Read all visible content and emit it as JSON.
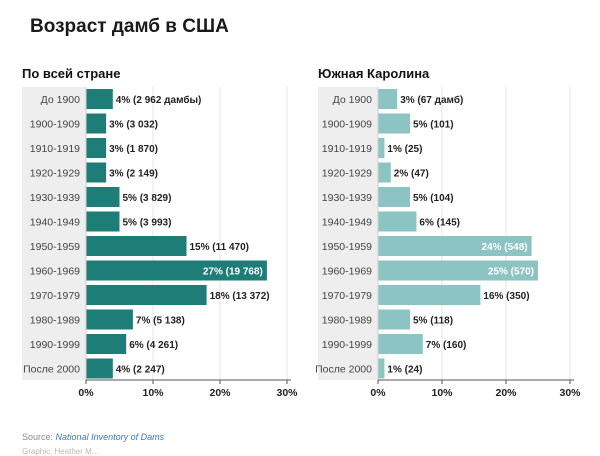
{
  "title": "Возраст дамб в США",
  "source": {
    "label": "Source:",
    "link": "National Inventory of Dams"
  },
  "footer_note": "Graphic: Heather M...",
  "colors": {
    "national": "#1e7d77",
    "sc": "#8cc3c3",
    "grid": "#e6e6e6",
    "label_band": "#eeeeee"
  },
  "chart_data": [
    {
      "type": "bar",
      "orientation": "horizontal",
      "title": "По всей стране",
      "categories": [
        "До 1900",
        "1900-1909",
        "1910-1919",
        "1920-1929",
        "1930-1939",
        "1940-1949",
        "1950-1959",
        "1960-1969",
        "1970-1979",
        "1980-1989",
        "1990-1999",
        "После 2000"
      ],
      "values": [
        4,
        3,
        3,
        3,
        5,
        5,
        15,
        27,
        18,
        7,
        6,
        4
      ],
      "data_labels": [
        "4% (2 962 дамбы)",
        "3% (3 032)",
        "3% (1 870)",
        "3% (2 149)",
        "5% (3 829)",
        "5% (3 993)",
        "15% (11 470)",
        "27% (19 768)",
        "18% (13 372)",
        "7% (5 138)",
        "6% (4 261)",
        "4% (2 247)"
      ],
      "label_inside": [
        false,
        false,
        false,
        false,
        false,
        false,
        false,
        true,
        false,
        false,
        false,
        false
      ],
      "xticks": [
        "0%",
        "10%",
        "20%",
        "30%"
      ],
      "xtick_values": [
        0,
        10,
        20,
        30
      ],
      "xlim": [
        0,
        30
      ],
      "grid": true
    },
    {
      "type": "bar",
      "orientation": "horizontal",
      "title": "Южная Каролина",
      "categories": [
        "До 1900",
        "1900-1909",
        "1910-1919",
        "1920-1929",
        "1930-1939",
        "1940-1949",
        "1950-1959",
        "1960-1969",
        "1970-1979",
        "1980-1989",
        "1990-1999",
        "После 2000"
      ],
      "values": [
        3,
        5,
        1,
        2,
        5,
        6,
        24,
        25,
        16,
        5,
        7,
        1
      ],
      "data_labels": [
        "3% (67 дамб)",
        "5% (101)",
        "1% (25)",
        "2% (47)",
        "5% (104)",
        "6% (145)",
        "24% (548)",
        "25% (570)",
        "16% (350)",
        "5% (118)",
        "7% (160)",
        "1% (24)"
      ],
      "label_inside": [
        false,
        false,
        false,
        false,
        false,
        false,
        true,
        true,
        false,
        false,
        false,
        false
      ],
      "xticks": [
        "0%",
        "10%",
        "20%",
        "30%"
      ],
      "xtick_values": [
        0,
        10,
        20,
        30
      ],
      "xlim": [
        0,
        30
      ],
      "grid": true
    }
  ]
}
